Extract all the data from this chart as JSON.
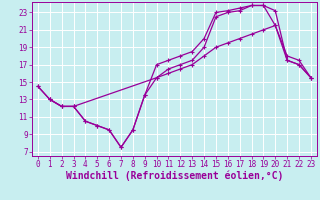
{
  "bg_color": "#c8eef0",
  "line_color": "#990099",
  "grid_color": "#ffffff",
  "xlabel": "Windchill (Refroidissement éolien,°C)",
  "xticks": [
    0,
    1,
    2,
    3,
    4,
    5,
    6,
    7,
    8,
    9,
    10,
    11,
    12,
    13,
    14,
    15,
    16,
    17,
    18,
    19,
    20,
    21,
    22,
    23
  ],
  "yticks": [
    7,
    9,
    11,
    13,
    15,
    17,
    19,
    21,
    23
  ],
  "xlim": [
    -0.5,
    23.5
  ],
  "ylim": [
    6.5,
    24.2
  ],
  "line1_x": [
    0,
    1,
    2,
    3,
    4,
    5,
    6,
    7,
    8,
    9,
    10,
    11,
    12,
    13,
    14,
    15,
    16,
    17,
    18,
    19,
    20,
    21,
    22,
    23
  ],
  "line1_y": [
    14.5,
    13.0,
    12.2,
    12.2,
    10.5,
    10.0,
    9.5,
    7.5,
    9.5,
    13.5,
    17.0,
    17.5,
    18.0,
    18.5,
    20.0,
    23.0,
    23.2,
    23.5,
    23.8,
    23.8,
    23.2,
    17.5,
    17.0,
    15.5
  ],
  "line2_x": [
    0,
    1,
    2,
    3,
    4,
    5,
    6,
    7,
    8,
    9,
    10,
    11,
    12,
    13,
    14,
    15,
    16,
    17,
    18,
    19,
    20,
    21,
    22,
    23
  ],
  "line2_y": [
    14.5,
    13.0,
    12.2,
    12.2,
    10.5,
    10.0,
    9.5,
    7.5,
    9.5,
    13.5,
    15.5,
    16.0,
    16.5,
    17.0,
    18.0,
    19.0,
    19.5,
    20.0,
    20.5,
    21.0,
    21.5,
    17.5,
    17.0,
    15.5
  ],
  "line3_x": [
    1,
    2,
    3,
    10,
    11,
    12,
    13,
    14,
    15,
    16,
    17,
    18,
    19,
    20,
    21,
    22,
    23
  ],
  "line3_y": [
    13.0,
    12.2,
    12.2,
    15.5,
    16.5,
    17.0,
    17.5,
    19.0,
    22.5,
    23.0,
    23.2,
    23.8,
    23.8,
    21.5,
    18.0,
    17.5,
    15.5
  ],
  "tick_fontsize": 5.5,
  "xlabel_fontsize": 7.0,
  "marker": "+",
  "marker_size": 3,
  "line_width": 0.9
}
